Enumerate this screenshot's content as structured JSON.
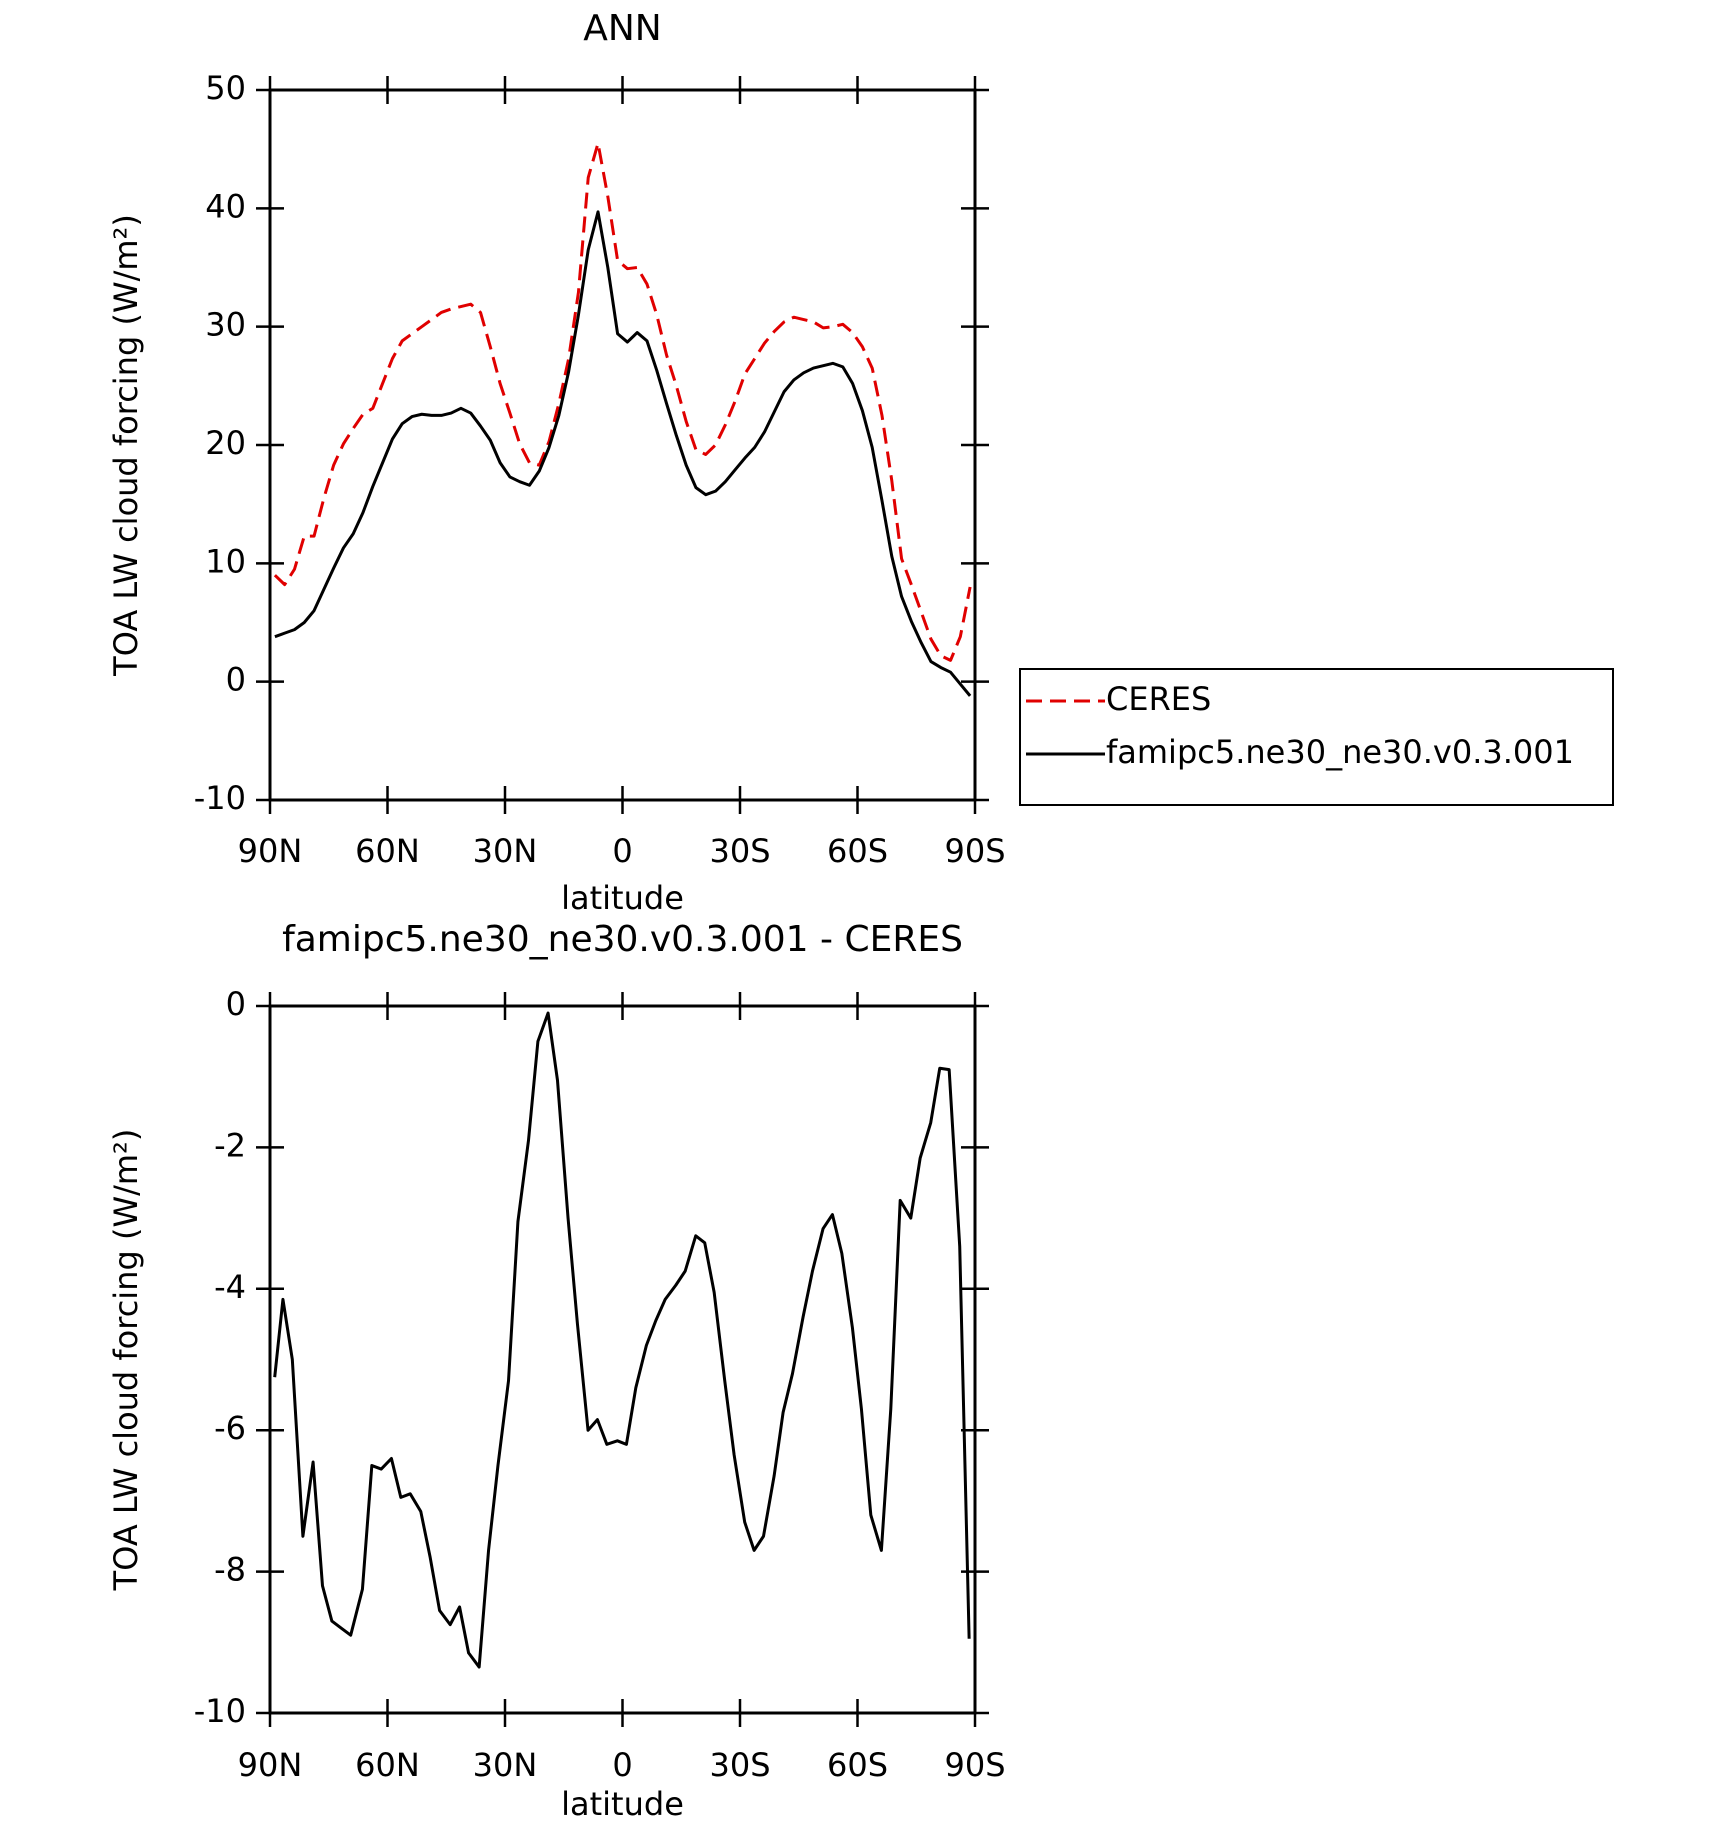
{
  "chart_data": [
    {
      "type": "line",
      "title": "ANN",
      "xlabel": "latitude",
      "ylabel": "TOA LW cloud forcing (W/m²)",
      "xlim": [
        90,
        -90
      ],
      "xticks": [
        {
          "value": 90,
          "label": "90N"
        },
        {
          "value": 60,
          "label": "60N"
        },
        {
          "value": 30,
          "label": "30N"
        },
        0,
        {
          "value": -30,
          "label": "30S"
        },
        {
          "value": -60,
          "label": "60S"
        },
        {
          "value": -90,
          "label": "90S"
        }
      ],
      "ylim": [
        -10,
        50
      ],
      "yticks": [
        -10,
        0,
        10,
        20,
        30,
        40,
        50
      ],
      "grid": false,
      "legend": "right",
      "x": [
        88.75,
        86.25,
        83.75,
        81.25,
        78.75,
        76.25,
        73.75,
        71.25,
        68.75,
        66.25,
        63.75,
        61.25,
        58.75,
        56.25,
        53.75,
        51.25,
        48.75,
        46.25,
        43.75,
        41.25,
        38.75,
        36.25,
        33.75,
        31.25,
        28.75,
        26.25,
        23.75,
        21.25,
        18.75,
        16.25,
        13.75,
        11.25,
        8.75,
        6.25,
        3.75,
        1.25,
        -1.25,
        -3.75,
        -6.25,
        -8.75,
        -11.25,
        -13.75,
        -16.25,
        -18.75,
        -21.25,
        -23.75,
        -26.25,
        -28.75,
        -31.25,
        -33.75,
        -36.25,
        -38.75,
        -41.25,
        -43.75,
        -46.25,
        -48.75,
        -51.25,
        -53.75,
        -56.25,
        -58.75,
        -61.25,
        -63.75,
        -66.25,
        -68.75,
        -71.25,
        -73.75,
        -76.25,
        -78.75,
        -81.25,
        -83.75,
        -86.25,
        -88.75
      ],
      "series": [
        {
          "name": "CERES",
          "color": "#e00000",
          "dash": true,
          "values": [
            9.0,
            8.2,
            9.5,
            12.3,
            12.3,
            15.5,
            18.3,
            20.1,
            21.4,
            22.6,
            23.1,
            25.2,
            27.3,
            28.8,
            29.4,
            30.0,
            30.6,
            31.2,
            31.5,
            31.7,
            31.9,
            31.2,
            28.3,
            25.2,
            22.7,
            20.1,
            18.5,
            18.3,
            20.3,
            23.5,
            27.3,
            32.9,
            42.6,
            45.5,
            41.0,
            35.6,
            34.9,
            35.0,
            33.6,
            31.0,
            27.6,
            25.0,
            22.0,
            19.6,
            19.2,
            20.0,
            21.7,
            23.7,
            26.0,
            27.3,
            28.6,
            29.6,
            30.4,
            30.8,
            30.6,
            30.4,
            29.9,
            30.0,
            30.2,
            29.5,
            28.3,
            26.5,
            22.5,
            17.0,
            10.4,
            8.2,
            5.9,
            3.6,
            2.2,
            1.8,
            3.8,
            8.0
          ]
        },
        {
          "name": "famipc5.ne30_ne30.v0.3.001",
          "color": "#000000",
          "dash": false,
          "values": [
            3.8,
            4.1,
            4.4,
            5.0,
            6.0,
            7.8,
            9.6,
            11.3,
            12.5,
            14.3,
            16.5,
            18.5,
            20.5,
            21.8,
            22.4,
            22.6,
            22.5,
            22.5,
            22.7,
            23.1,
            22.7,
            21.6,
            20.4,
            18.5,
            17.3,
            16.9,
            16.6,
            17.8,
            19.8,
            22.5,
            26.2,
            31.0,
            36.5,
            39.7,
            35.0,
            29.4,
            28.7,
            29.5,
            28.8,
            26.3,
            23.5,
            20.8,
            18.3,
            16.4,
            15.8,
            16.1,
            16.9,
            17.9,
            18.9,
            19.8,
            21.1,
            22.8,
            24.5,
            25.5,
            26.1,
            26.5,
            26.7,
            26.9,
            26.6,
            25.2,
            22.9,
            19.8,
            15.3,
            10.6,
            7.2,
            5.1,
            3.3,
            1.7,
            1.2,
            0.8,
            -0.2,
            -1.2
          ]
        }
      ]
    },
    {
      "type": "line",
      "title": "famipc5.ne30_ne30.v0.3.001 - CERES",
      "xlabel": "latitude",
      "ylabel": "TOA LW cloud forcing (W/m²)",
      "xlim": [
        90,
        -90
      ],
      "xticks": [
        {
          "value": 90,
          "label": "90N"
        },
        {
          "value": 60,
          "label": "60N"
        },
        {
          "value": 30,
          "label": "30N"
        },
        0,
        {
          "value": -30,
          "label": "30S"
        },
        {
          "value": -60,
          "label": "60S"
        },
        {
          "value": -90,
          "label": "90S"
        }
      ],
      "ylim": [
        -10,
        0
      ],
      "yticks": [
        -10,
        -8,
        -6,
        -4,
        -2,
        0
      ],
      "grid": false,
      "x": [
        88.8,
        86.7,
        84.3,
        81.6,
        79.0,
        76.6,
        74.2,
        71.8,
        69.4,
        66.4,
        64.0,
        61.6,
        59.0,
        56.6,
        54.2,
        51.5,
        49.1,
        46.7,
        44.0,
        41.6,
        39.3,
        36.6,
        34.2,
        31.8,
        29.1,
        26.7,
        24.0,
        21.6,
        19.0,
        16.6,
        13.9,
        11.5,
        8.8,
        6.4,
        4.0,
        1.3,
        -1.0,
        -3.4,
        -6.1,
        -8.5,
        -10.9,
        -13.6,
        -16.0,
        -18.7,
        -21.0,
        -23.4,
        -26.1,
        -28.5,
        -31.2,
        -33.6,
        -36.0,
        -38.7,
        -41.0,
        -43.4,
        -46.1,
        -48.5,
        -51.2,
        -53.6,
        -56.0,
        -58.7,
        -61.0,
        -63.4,
        -66.1,
        -68.5,
        -70.9,
        -73.6,
        -76.0,
        -78.7,
        -81.0,
        -83.4,
        -86.1,
        -88.5
      ],
      "series": [
        {
          "color": "#000000",
          "dash": false,
          "values": [
            -5.25,
            -4.15,
            -5.0,
            -7.5,
            -6.45,
            -8.2,
            -8.7,
            -8.8,
            -8.9,
            -8.25,
            -6.5,
            -6.55,
            -6.4,
            -6.95,
            -6.9,
            -7.15,
            -7.8,
            -8.55,
            -8.75,
            -8.5,
            -9.15,
            -9.35,
            -7.7,
            -6.5,
            -5.3,
            -3.05,
            -1.9,
            -0.5,
            -0.1,
            -1.05,
            -3.0,
            -4.5,
            -6.0,
            -5.85,
            -6.2,
            -6.15,
            -6.2,
            -5.4,
            -4.8,
            -4.45,
            -4.15,
            -3.95,
            -3.75,
            -3.25,
            -3.35,
            -4.05,
            -5.3,
            -6.35,
            -7.3,
            -7.7,
            -7.5,
            -6.65,
            -5.75,
            -5.2,
            -4.4,
            -3.75,
            -3.15,
            -2.95,
            -3.5,
            -4.55,
            -5.7,
            -7.2,
            -7.7,
            -5.7,
            -2.75,
            -3.0,
            -2.15,
            -1.65,
            -0.88,
            -0.9,
            -3.4,
            -8.95
          ]
        }
      ]
    }
  ]
}
